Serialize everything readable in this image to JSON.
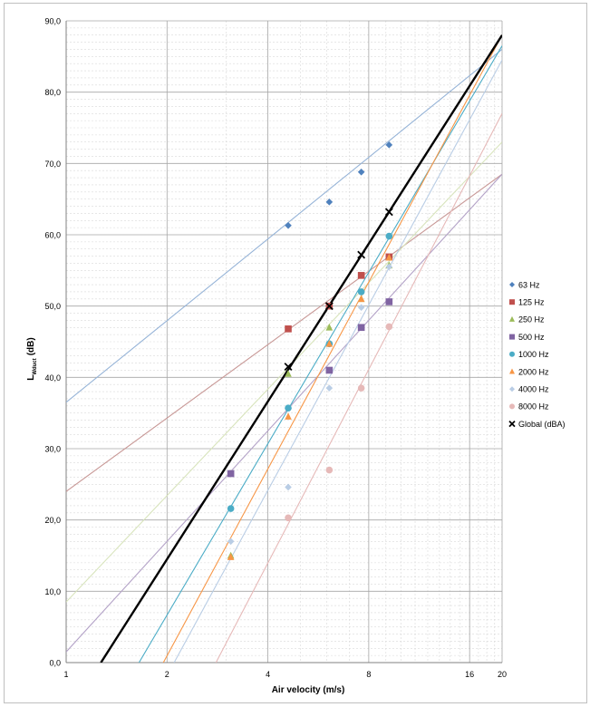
{
  "chart_data": {
    "type": "scatter",
    "x_scale": "log2",
    "xlabel": "Air velocity (m/s)",
    "ylabel_main": "L",
    "ylabel_sub": "Wduct",
    "ylabel_unit": "(dB)",
    "xlim": [
      1,
      20
    ],
    "ylim": [
      0,
      90
    ],
    "x_ticks": [
      1,
      2,
      4,
      8,
      16,
      20
    ],
    "y_ticks": [
      0,
      10,
      20,
      30,
      40,
      50,
      60,
      70,
      80,
      90
    ],
    "y_tick_labels": [
      "0,0",
      "10,0",
      "20,0",
      "30,0",
      "40,0",
      "50,0",
      "60,0",
      "70,0",
      "80,0",
      "90,0"
    ],
    "grid": "major and minor gridlines",
    "legend_position": "right",
    "series": [
      {
        "name": "63 Hz",
        "marker": "diamond",
        "color": "#4f81bd",
        "trend_color": "#95b3d7",
        "x": [
          4.6,
          6.1,
          7.6,
          9.2
        ],
        "y": [
          61.3,
          64.6,
          68.8,
          72.6
        ],
        "trend": [
          [
            1,
            36.5
          ],
          [
            20,
            86
          ]
        ]
      },
      {
        "name": "125 Hz",
        "marker": "square",
        "color": "#c0504d",
        "trend_color": "#c89896",
        "x": [
          4.6,
          6.1,
          7.6,
          9.2
        ],
        "y": [
          46.8,
          50.0,
          54.3,
          56.9
        ],
        "trend": [
          [
            1,
            24
          ],
          [
            20,
            68.5
          ]
        ]
      },
      {
        "name": "250 Hz",
        "marker": "triangle",
        "color": "#9bbb59",
        "trend_color": "#d8e4bc",
        "x": [
          3.1,
          4.6,
          6.1,
          7.6,
          9.2
        ],
        "y": [
          15,
          40.5,
          47,
          51,
          55.7
        ],
        "trend": [
          [
            1,
            8.5
          ],
          [
            20,
            73
          ]
        ]
      },
      {
        "name": "500 Hz",
        "marker": "square",
        "color": "#8064a2",
        "trend_color": "#b3a2c7",
        "x": [
          3.1,
          6.1,
          7.6,
          9.2
        ],
        "y": [
          26.5,
          41,
          47,
          50.6
        ],
        "trend": [
          [
            1,
            1.5
          ],
          [
            20,
            68.5
          ]
        ]
      },
      {
        "name": "1000 Hz",
        "marker": "circle",
        "color": "#4bacc6",
        "trend_color": "#4bacc6",
        "x": [
          3.1,
          4.6,
          6.1,
          7.6,
          9.2
        ],
        "y": [
          21.6,
          35.7,
          44.7,
          52,
          59.8
        ],
        "trend": [
          [
            1.65,
            0
          ],
          [
            20,
            86.5
          ]
        ]
      },
      {
        "name": "2000 Hz",
        "marker": "triangle",
        "color": "#f79646",
        "trend_color": "#f79646",
        "x": [
          3.1,
          4.6,
          6.1,
          7.6,
          9.2
        ],
        "y": [
          14.8,
          34.5,
          44.7,
          51,
          56.8
        ],
        "trend": [
          [
            1.95,
            0
          ],
          [
            20,
            88
          ]
        ]
      },
      {
        "name": "4000 Hz",
        "marker": "diamond",
        "color": "#b9cde5",
        "trend_color": "#b9cde5",
        "x": [
          3.1,
          4.6,
          6.1,
          7.6,
          9.2
        ],
        "y": [
          17,
          24.6,
          38.5,
          49.8,
          55.5
        ],
        "trend": [
          [
            2.1,
            0
          ],
          [
            20,
            84.5
          ]
        ]
      },
      {
        "name": "8000 Hz",
        "marker": "circle",
        "color": "#e6b9b8",
        "trend_color": "#e6b9b8",
        "x": [
          4.6,
          6.1,
          7.6,
          9.2
        ],
        "y": [
          20.3,
          27,
          38.5,
          47.1
        ],
        "trend": [
          [
            2.8,
            0
          ],
          [
            20,
            77
          ]
        ]
      },
      {
        "name": "Global (dBA)",
        "marker": "x",
        "color": "#000000",
        "trend_color": "#000000",
        "x": [
          4.6,
          6.1,
          7.6,
          9.2
        ],
        "y": [
          41.5,
          50,
          57.2,
          63.2
        ],
        "trend": [
          [
            1.27,
            0
          ],
          [
            20,
            88
          ]
        ]
      }
    ]
  }
}
